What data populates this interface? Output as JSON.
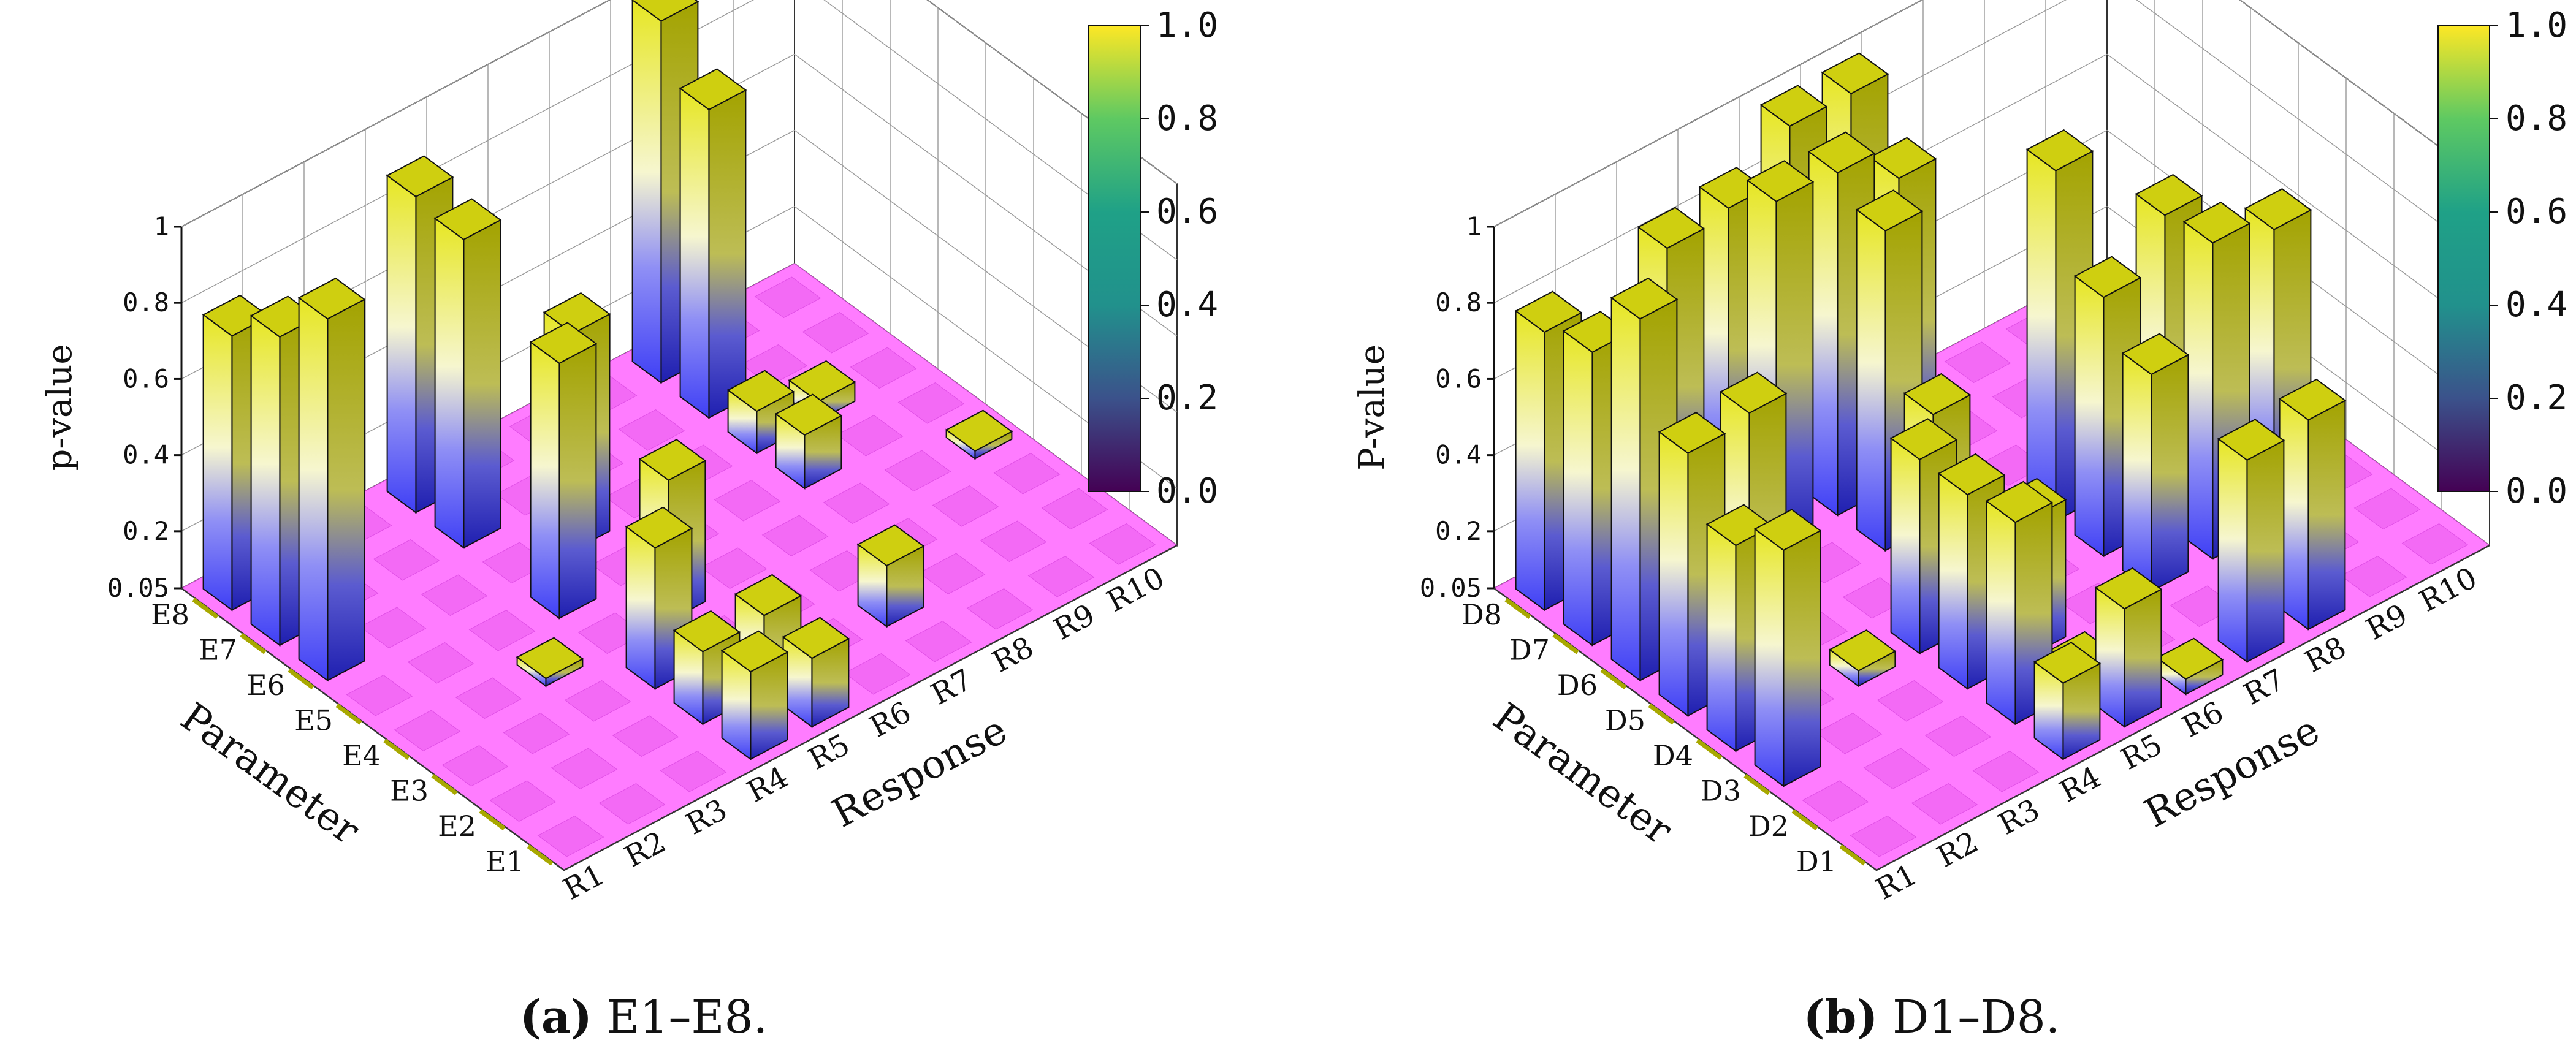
{
  "figure": {
    "colorbar": {
      "ticks": [
        "0.0",
        "0.2",
        "0.4",
        "0.6",
        "0.8",
        "1.0"
      ]
    },
    "colors": {
      "floor": "#ff7cff",
      "floor_tile": "#f36af5",
      "bar_top": "#cfcf10",
      "bar_side_light": "#e6e622",
      "bar_side_dark": "#a3a300",
      "bar_bottom": "#3f3ff5",
      "grid": "#9a9a9a"
    }
  },
  "chart_data": [
    {
      "type": "bar3d",
      "panel": "a",
      "caption_letter": "(a)",
      "caption_text": " E1–E8.",
      "zlabel": "p-value",
      "xlabel": "Response",
      "ylabel": "Parameter",
      "z_ticks": [
        "0.05",
        "0.2",
        "0.4",
        "0.6",
        "0.8",
        "1"
      ],
      "zlim": [
        0.05,
        1.0
      ],
      "responses": [
        "R1",
        "R2",
        "R3",
        "R4",
        "R5",
        "R6",
        "R7",
        "R8",
        "R9",
        "R10"
      ],
      "parameters": [
        "E1",
        "E2",
        "E3",
        "E4",
        "E5",
        "E6",
        "E7",
        "E8"
      ],
      "bars": [
        {
          "r": 1,
          "p": 8,
          "v": 0.77
        },
        {
          "r": 1,
          "p": 7,
          "v": 0.86
        },
        {
          "r": 1,
          "p": 6,
          "v": 1.0
        },
        {
          "r": 4,
          "p": 8,
          "v": 0.88
        },
        {
          "r": 4,
          "p": 7,
          "v": 0.86
        },
        {
          "r": 3,
          "p": 4,
          "v": 0.07
        },
        {
          "r": 4,
          "p": 5,
          "v": 0.72
        },
        {
          "r": 5,
          "p": 6,
          "v": 0.62
        },
        {
          "r": 4,
          "p": 3,
          "v": 0.42
        },
        {
          "r": 5,
          "p": 4,
          "v": 0.42
        },
        {
          "r": 4,
          "p": 2,
          "v": 0.24
        },
        {
          "r": 5,
          "p": 2,
          "v": 0.25
        },
        {
          "r": 4,
          "p": 1,
          "v": 0.28
        },
        {
          "r": 5,
          "p": 1,
          "v": 0.23
        },
        {
          "r": 8,
          "p": 8,
          "v": 1.0
        },
        {
          "r": 8,
          "p": 7,
          "v": 0.86
        },
        {
          "r": 8,
          "p": 5,
          "v": 0.19
        },
        {
          "r": 8,
          "p": 6,
          "v": 0.16
        },
        {
          "r": 9,
          "p": 6,
          "v": 0.1
        },
        {
          "r": 7,
          "p": 2,
          "v": 0.21
        },
        {
          "r": 10,
          "p": 4,
          "v": 0.07
        }
      ]
    },
    {
      "type": "bar3d",
      "panel": "b",
      "caption_letter": "(b)",
      "caption_text": " D1–D8.",
      "zlabel": "P-value",
      "xlabel": "Response",
      "ylabel": "Parameter",
      "z_ticks": [
        "0.05",
        "0.2",
        "0.4",
        "0.6",
        "0.8",
        "1"
      ],
      "zlim": [
        0.05,
        1.0
      ],
      "responses": [
        "R1",
        "R2",
        "R3",
        "R4",
        "R5",
        "R6",
        "R7",
        "R8",
        "R9",
        "R10"
      ],
      "parameters": [
        "D1",
        "D2",
        "D3",
        "D4",
        "D5",
        "D6",
        "D7",
        "D8"
      ],
      "bars": [
        {
          "r": 1,
          "p": 8,
          "v": 0.78
        },
        {
          "r": 1,
          "p": 7,
          "v": 0.82
        },
        {
          "r": 1,
          "p": 6,
          "v": 1.0
        },
        {
          "r": 1,
          "p": 5,
          "v": 0.74
        },
        {
          "r": 2,
          "p": 5,
          "v": 0.76
        },
        {
          "r": 1,
          "p": 4,
          "v": 0.59
        },
        {
          "r": 1,
          "p": 3,
          "v": 0.67
        },
        {
          "r": 3,
          "p": 8,
          "v": 0.83
        },
        {
          "r": 4,
          "p": 8,
          "v": 0.85
        },
        {
          "r": 4,
          "p": 7,
          "v": 0.96
        },
        {
          "r": 5,
          "p": 8,
          "v": 0.98
        },
        {
          "r": 5,
          "p": 7,
          "v": 0.95
        },
        {
          "r": 6,
          "p": 8,
          "v": 0.98
        },
        {
          "r": 6,
          "p": 7,
          "v": 0.85
        },
        {
          "r": 5,
          "p": 6,
          "v": 0.89
        },
        {
          "r": 4,
          "p": 4,
          "v": 0.56
        },
        {
          "r": 3,
          "p": 4,
          "v": 0.09
        },
        {
          "r": 4,
          "p": 3,
          "v": 0.56
        },
        {
          "r": 5,
          "p": 3,
          "v": 0.41
        },
        {
          "r": 4,
          "p": 2,
          "v": 0.58
        },
        {
          "r": 4,
          "p": 1,
          "v": 0.25
        },
        {
          "r": 5,
          "p": 1,
          "v": 0.36
        },
        {
          "r": 5,
          "p": 5,
          "v": 0.5
        },
        {
          "r": 7,
          "p": 5,
          "v": 0.97
        },
        {
          "r": 7,
          "p": 4,
          "v": 0.73
        },
        {
          "r": 7,
          "p": 3,
          "v": 0.62
        },
        {
          "r": 8,
          "p": 4,
          "v": 0.86
        },
        {
          "r": 8,
          "p": 3,
          "v": 0.88
        },
        {
          "r": 9,
          "p": 3,
          "v": 0.83
        },
        {
          "r": 7,
          "p": 1,
          "v": 0.58
        },
        {
          "r": 8,
          "p": 1,
          "v": 0.6
        },
        {
          "r": 6,
          "p": 1,
          "v": 0.09
        },
        {
          "r": 5,
          "p": 2,
          "v": 0.1
        }
      ]
    }
  ]
}
